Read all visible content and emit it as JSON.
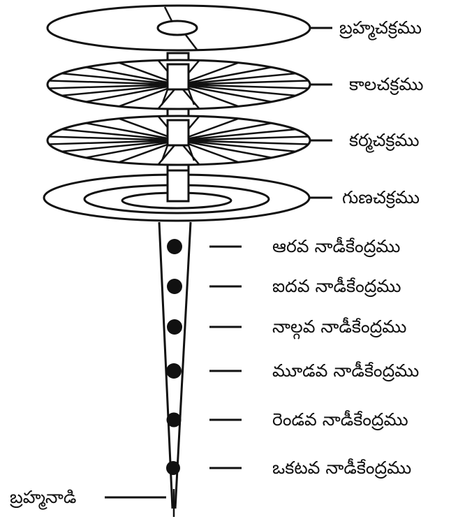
{
  "chakras": [
    {
      "label": "బ్రహ్మచక్రము"
    },
    {
      "label": "కాలచక్రము"
    },
    {
      "label": "కర్మచక్రము"
    },
    {
      "label": "గుణచక్రము"
    }
  ],
  "nadi_centres": [
    {
      "label": "ఆరవ నాడీకేంద్రము"
    },
    {
      "label": "ఐదవ నాడీకేంద్రము"
    },
    {
      "label": "నాల్గవ నాడీకేంద్రము"
    },
    {
      "label": "మూడవ నాడీకేంద్రము"
    },
    {
      "label": "రెండవ నాడీకేంద్రము"
    },
    {
      "label": "ఒకటవ నాడీకేంద్రము"
    }
  ],
  "brahma_nadi": {
    "label": "బ్రహ్మనాడి"
  },
  "colors": {
    "ink": "#111111",
    "background": "#ffffff"
  }
}
